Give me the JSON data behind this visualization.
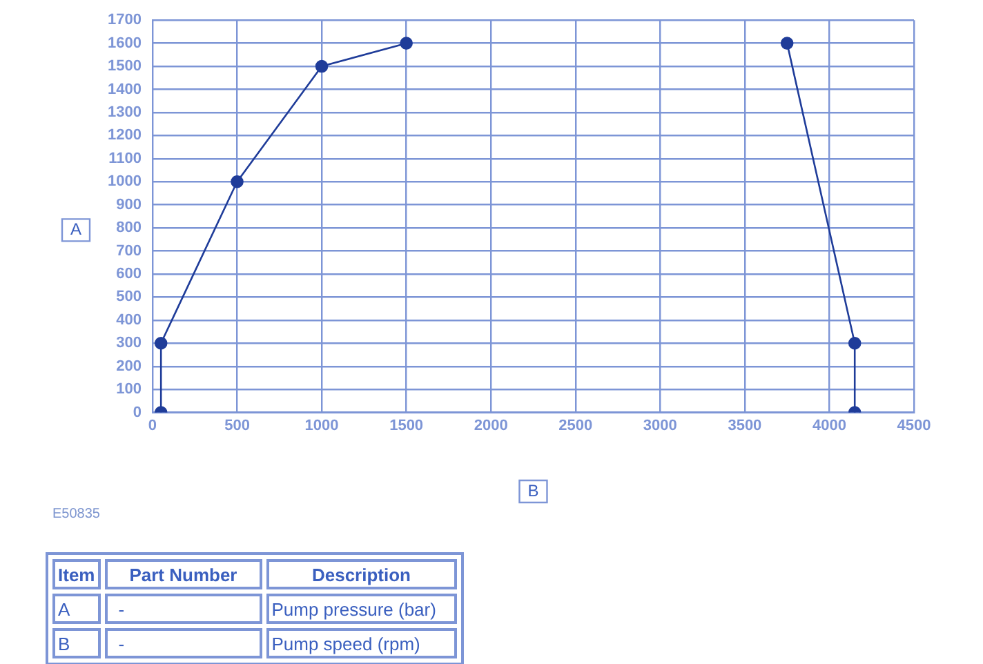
{
  "chart_data": {
    "type": "line",
    "xlabel": "B",
    "ylabel": "A",
    "series": [
      {
        "x": [
          50,
          50,
          500,
          1000,
          1500
        ],
        "values": [
          0,
          300,
          1000,
          1500,
          1600
        ],
        "color": "#1f3c99"
      },
      {
        "x": [
          3750,
          4150,
          4150
        ],
        "values": [
          1600,
          300,
          0
        ],
        "color": "#1f3c99"
      }
    ],
    "xlim": [
      0,
      4500
    ],
    "xticks": [
      0,
      500,
      1000,
      1500,
      2000,
      2500,
      3000,
      3500,
      4000,
      4500
    ],
    "ylim": [
      0,
      1700
    ],
    "yticks": [
      0,
      100,
      200,
      300,
      400,
      500,
      600,
      700,
      800,
      900,
      1000,
      1100,
      1200,
      1300,
      1400,
      1500,
      1600,
      1700
    ],
    "grid": true,
    "legend": false,
    "marker": "circle",
    "line_style": "solid",
    "annotations": [
      "E50835",
      "Item",
      "Part Number",
      "Description",
      "A",
      "-",
      "Pump pressure (bar)",
      "B",
      "-",
      "Pump speed (rpm)"
    ]
  }
}
